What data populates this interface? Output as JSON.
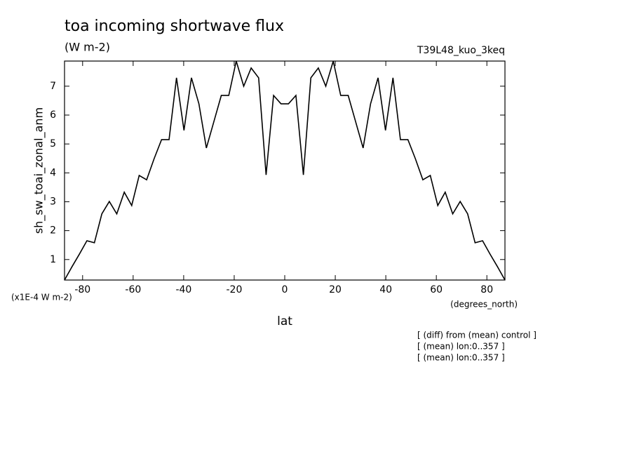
{
  "chart_data": {
    "type": "line",
    "title": "toa incoming shortwave flux",
    "subtitle": "(W m-2)",
    "run_label": "T39L48_kuo_3keq",
    "y_label": "sh_sw_toai_zonal_anm",
    "y_unit": "(x1E-4 W m-2)",
    "x_unit": "(degrees_north)",
    "x_label": "lat",
    "notes": [
      "[ (diff) from (mean) control ]",
      "[ (mean) lon:0..357 ]",
      "[ (mean) lon:0..357 ]"
    ],
    "x": [
      -87.16,
      -84.21,
      -81.25,
      -78.3,
      -75.34,
      -72.39,
      -69.43,
      -66.48,
      -63.52,
      -60.57,
      -57.61,
      -54.66,
      -51.7,
      -48.75,
      -45.79,
      -42.84,
      -39.88,
      -36.93,
      -33.97,
      -31.02,
      -28.06,
      -25.11,
      -22.15,
      -19.2,
      -16.24,
      -13.29,
      -10.33,
      -7.38,
      -4.42,
      -1.47,
      1.47,
      4.42,
      7.38,
      10.33,
      13.29,
      16.24,
      19.2,
      22.15,
      25.11,
      28.06,
      31.02,
      33.97,
      36.93,
      39.88,
      42.84,
      45.79,
      48.75,
      51.7,
      54.66,
      57.61,
      60.57,
      63.52,
      66.48,
      69.43,
      72.39,
      75.34,
      78.3,
      81.25,
      84.21,
      87.16
    ],
    "series": [
      {
        "name": "sh_sw_toai_zonal_anm",
        "color": "#000000",
        "values": [
          0.29,
          0.75,
          1.19,
          1.65,
          1.58,
          2.58,
          3.01,
          2.58,
          3.33,
          2.87,
          3.91,
          3.76,
          4.49,
          5.15,
          5.15,
          7.29,
          5.47,
          7.29,
          6.39,
          4.86,
          5.77,
          6.68,
          6.68,
          7.87,
          7.0,
          7.63,
          7.29,
          3.93,
          6.68,
          6.39,
          6.39,
          6.68,
          3.93,
          7.29,
          7.63,
          7.0,
          7.87,
          6.68,
          6.68,
          5.77,
          4.86,
          6.39,
          7.29,
          5.47,
          7.29,
          5.15,
          5.15,
          4.49,
          3.76,
          3.91,
          2.87,
          3.33,
          2.58,
          3.01,
          2.58,
          1.58,
          1.65,
          1.19,
          0.75,
          0.29
        ]
      }
    ],
    "xlim": [
      -87.16,
      87.16
    ],
    "xticks": [
      -80,
      -60,
      -40,
      -20,
      0,
      20,
      40,
      60,
      80
    ],
    "ylim": [
      0.29,
      7.87
    ],
    "yticks": [
      1,
      2,
      3,
      4,
      5,
      6,
      7
    ]
  }
}
